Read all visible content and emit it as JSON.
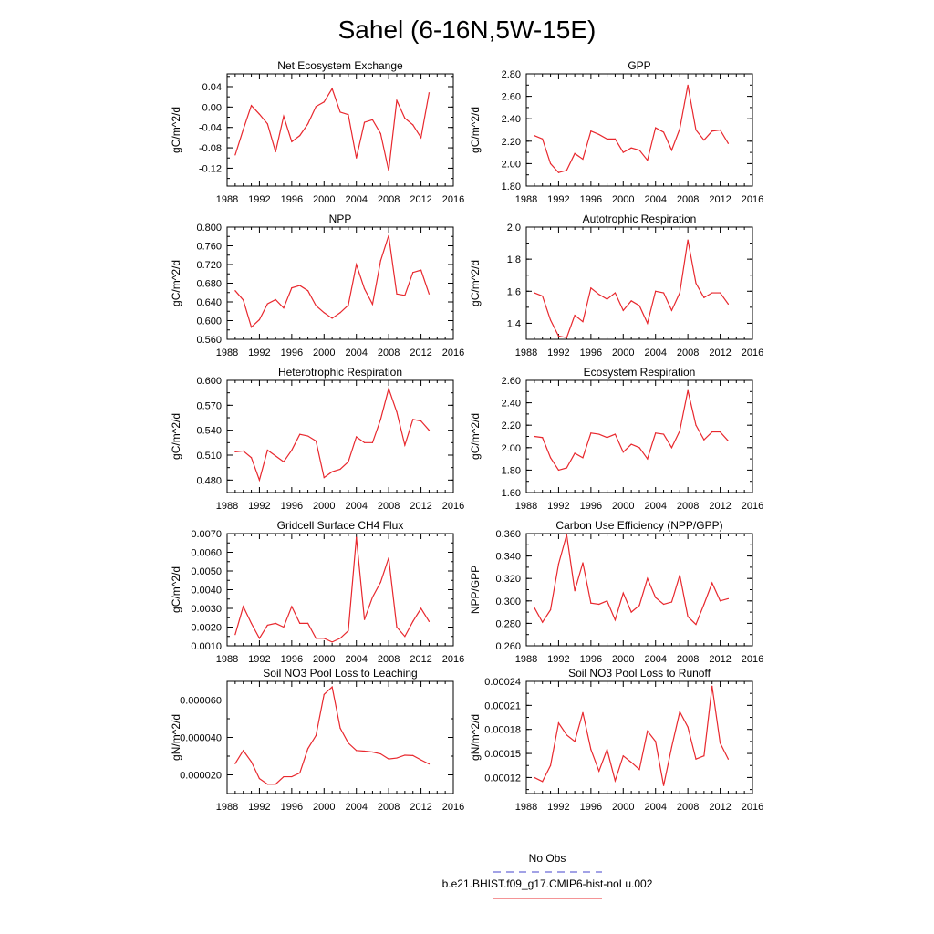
{
  "figure": {
    "title": "Sahel (6-16N,5W-15E)",
    "legend": [
      {
        "label": "No Obs",
        "color": "#4444cc",
        "style": "dashed"
      },
      {
        "label": "b.e21.BHIST.f09_g17.CMIP6-hist-noLu.002",
        "color": "#e8282e",
        "style": "solid"
      }
    ]
  },
  "chart_data": [
    {
      "type": "line",
      "title": "Net Ecosystem Exchange",
      "ylabel": "gC/m^2/d",
      "xlim": [
        1988,
        2016
      ],
      "xticks": [
        "1988",
        "1992",
        "1996",
        "2000",
        "2004",
        "2008",
        "2012",
        "2016"
      ],
      "ylim": [
        -0.155,
        0.065
      ],
      "yticks": [
        "0.04",
        "0.00",
        "-0.04",
        "-0.08",
        "-0.12"
      ],
      "x": [
        1989,
        1990,
        1991,
        1992,
        1993,
        1994,
        1995,
        1996,
        1997,
        1998,
        1999,
        2000,
        2001,
        2002,
        2003,
        2004,
        2005,
        2006,
        2007,
        2008,
        2009,
        2010,
        2011,
        2012,
        2013
      ],
      "series": [
        {
          "values": [
            -0.094,
            -0.044,
            0.003,
            -0.014,
            -0.033,
            -0.088,
            -0.018,
            -0.068,
            -0.056,
            -0.033,
            0.001,
            0.01,
            0.036,
            -0.01,
            -0.015,
            -0.1,
            -0.03,
            -0.025,
            -0.052,
            -0.125,
            0.013,
            -0.022,
            -0.035,
            -0.06,
            0.028
          ]
        }
      ]
    },
    {
      "type": "line",
      "title": "GPP",
      "ylabel": "gC/m^2/d",
      "xlim": [
        1988,
        2016
      ],
      "xticks": [
        "1988",
        "1992",
        "1996",
        "2000",
        "2004",
        "2008",
        "2012",
        "2016"
      ],
      "ylim": [
        1.8,
        2.8
      ],
      "yticks": [
        "2.80",
        "2.60",
        "2.40",
        "2.20",
        "2.00",
        "1.80"
      ],
      "x": [
        1989,
        1990,
        1991,
        1992,
        1993,
        1994,
        1995,
        1996,
        1997,
        1998,
        1999,
        2000,
        2001,
        2002,
        2003,
        2004,
        2005,
        2006,
        2007,
        2008,
        2009,
        2010,
        2011,
        2012,
        2013
      ],
      "series": [
        {
          "values": [
            2.25,
            2.22,
            2.0,
            1.92,
            1.94,
            2.09,
            2.04,
            2.29,
            2.26,
            2.22,
            2.22,
            2.1,
            2.14,
            2.12,
            2.03,
            2.32,
            2.28,
            2.12,
            2.31,
            2.7,
            2.3,
            2.21,
            2.29,
            2.3,
            2.18
          ]
        }
      ]
    },
    {
      "type": "line",
      "title": "NPP",
      "ylabel": "gC/m^2/d",
      "xlim": [
        1988,
        2016
      ],
      "xticks": [
        "1988",
        "1992",
        "1996",
        "2000",
        "2004",
        "2008",
        "2012",
        "2016"
      ],
      "ylim": [
        0.56,
        0.8
      ],
      "yticks": [
        "0.800",
        "0.760",
        "0.720",
        "0.680",
        "0.640",
        "0.600",
        "0.560"
      ],
      "x": [
        1989,
        1990,
        1991,
        1992,
        1993,
        1994,
        1995,
        1996,
        1997,
        1998,
        1999,
        2000,
        2001,
        2002,
        2003,
        2004,
        2005,
        2006,
        2007,
        2008,
        2009,
        2010,
        2011,
        2012,
        2013
      ],
      "series": [
        {
          "values": [
            0.664,
            0.644,
            0.586,
            0.602,
            0.636,
            0.645,
            0.627,
            0.67,
            0.675,
            0.664,
            0.632,
            0.617,
            0.605,
            0.617,
            0.633,
            0.72,
            0.668,
            0.635,
            0.728,
            0.782,
            0.657,
            0.654,
            0.703,
            0.708,
            0.657
          ]
        }
      ]
    },
    {
      "type": "line",
      "title": "Autotrophic Respiration",
      "ylabel": "gC/m^2/d",
      "xlim": [
        1988,
        2016
      ],
      "xticks": [
        "1988",
        "1992",
        "1996",
        "2000",
        "2004",
        "2008",
        "2012",
        "2016"
      ],
      "ylim": [
        1.3,
        2.0
      ],
      "yticks": [
        "2.0",
        "1.8",
        "1.6",
        "1.4"
      ],
      "x": [
        1989,
        1990,
        1991,
        1992,
        1993,
        1994,
        1995,
        1996,
        1997,
        1998,
        1999,
        2000,
        2001,
        2002,
        2003,
        2004,
        2005,
        2006,
        2007,
        2008,
        2009,
        2010,
        2011,
        2012,
        2013
      ],
      "series": [
        {
          "values": [
            1.59,
            1.57,
            1.42,
            1.32,
            1.31,
            1.45,
            1.41,
            1.62,
            1.58,
            1.55,
            1.59,
            1.48,
            1.54,
            1.51,
            1.4,
            1.6,
            1.59,
            1.48,
            1.59,
            1.92,
            1.65,
            1.56,
            1.59,
            1.59,
            1.52
          ]
        }
      ]
    },
    {
      "type": "line",
      "title": "Heterotrophic Respiration",
      "ylabel": "gC/m^2/d",
      "xlim": [
        1988,
        2016
      ],
      "xticks": [
        "1988",
        "1992",
        "1996",
        "2000",
        "2004",
        "2008",
        "2012",
        "2016"
      ],
      "ylim": [
        0.465,
        0.6
      ],
      "yticks": [
        "0.600",
        "0.570",
        "0.540",
        "0.510",
        "0.480"
      ],
      "x": [
        1989,
        1990,
        1991,
        1992,
        1993,
        1994,
        1995,
        1996,
        1997,
        1998,
        1999,
        2000,
        2001,
        2002,
        2003,
        2004,
        2005,
        2006,
        2007,
        2008,
        2009,
        2010,
        2011,
        2012,
        2013
      ],
      "series": [
        {
          "values": [
            0.514,
            0.515,
            0.507,
            0.48,
            0.516,
            0.509,
            0.502,
            0.516,
            0.535,
            0.533,
            0.527,
            0.483,
            0.49,
            0.493,
            0.502,
            0.532,
            0.525,
            0.525,
            0.553,
            0.59,
            0.562,
            0.522,
            0.553,
            0.551,
            0.54
          ]
        }
      ]
    },
    {
      "type": "line",
      "title": "Ecosystem Respiration",
      "ylabel": "gC/m^2/d",
      "xlim": [
        1988,
        2016
      ],
      "xticks": [
        "1988",
        "1992",
        "1996",
        "2000",
        "2004",
        "2008",
        "2012",
        "2016"
      ],
      "ylim": [
        1.6,
        2.6
      ],
      "yticks": [
        "2.60",
        "2.40",
        "2.20",
        "2.00",
        "1.80",
        "1.60"
      ],
      "x": [
        1989,
        1990,
        1991,
        1992,
        1993,
        1994,
        1995,
        1996,
        1997,
        1998,
        1999,
        2000,
        2001,
        2002,
        2003,
        2004,
        2005,
        2006,
        2007,
        2008,
        2009,
        2010,
        2011,
        2012,
        2013
      ],
      "series": [
        {
          "values": [
            2.1,
            2.09,
            1.91,
            1.8,
            1.82,
            1.95,
            1.91,
            2.13,
            2.12,
            2.09,
            2.12,
            1.96,
            2.03,
            2.0,
            1.9,
            2.13,
            2.12,
            2.0,
            2.15,
            2.51,
            2.2,
            2.07,
            2.14,
            2.14,
            2.06
          ]
        }
      ]
    },
    {
      "type": "line",
      "title": "Gridcell Surface CH4 Flux",
      "ylabel": "gC/m^2/d",
      "xlim": [
        1988,
        2016
      ],
      "xticks": [
        "1988",
        "1992",
        "1996",
        "2000",
        "2004",
        "2008",
        "2012",
        "2016"
      ],
      "ylim": [
        0.001,
        0.007
      ],
      "yticks": [
        "0.0070",
        "0.0060",
        "0.0050",
        "0.0040",
        "0.0030",
        "0.0020",
        "0.0010"
      ],
      "x": [
        1989,
        1990,
        1991,
        1992,
        1993,
        1994,
        1995,
        1996,
        1997,
        1998,
        1999,
        2000,
        2001,
        2002,
        2003,
        2004,
        2005,
        2006,
        2007,
        2008,
        2009,
        2010,
        2011,
        2012,
        2013
      ],
      "series": [
        {
          "values": [
            0.0016,
            0.0031,
            0.0022,
            0.0014,
            0.0021,
            0.0022,
            0.002,
            0.0031,
            0.0022,
            0.0022,
            0.0014,
            0.0014,
            0.0012,
            0.0014,
            0.0018,
            0.0068,
            0.0024,
            0.0036,
            0.0044,
            0.0057,
            0.002,
            0.0015,
            0.0023,
            0.003,
            0.0023
          ]
        }
      ]
    },
    {
      "type": "line",
      "title": "Carbon Use Efficiency (NPP/GPP)",
      "ylabel": "NPP/GPP",
      "xlim": [
        1988,
        2016
      ],
      "xticks": [
        "1988",
        "1992",
        "1996",
        "2000",
        "2004",
        "2008",
        "2012",
        "2016"
      ],
      "ylim": [
        0.26,
        0.36
      ],
      "yticks": [
        "0.360",
        "0.340",
        "0.320",
        "0.300",
        "0.280",
        "0.260"
      ],
      "x": [
        1989,
        1990,
        1991,
        1992,
        1993,
        1994,
        1995,
        1996,
        1997,
        1998,
        1999,
        2000,
        2001,
        2002,
        2003,
        2004,
        2005,
        2006,
        2007,
        2008,
        2009,
        2010,
        2011,
        2012,
        2013
      ],
      "series": [
        {
          "values": [
            0.294,
            0.281,
            0.292,
            0.333,
            0.359,
            0.309,
            0.334,
            0.298,
            0.297,
            0.3,
            0.283,
            0.307,
            0.29,
            0.296,
            0.32,
            0.303,
            0.297,
            0.299,
            0.323,
            0.286,
            0.279,
            0.297,
            0.316,
            0.3,
            0.302
          ]
        }
      ]
    },
    {
      "type": "line",
      "title": "Soil NO3 Pool Loss to Leaching",
      "ylabel": "gN/m^2/d",
      "xlim": [
        1988,
        2016
      ],
      "xticks": [
        "1988",
        "1992",
        "1996",
        "2000",
        "2004",
        "2008",
        "2012",
        "2016"
      ],
      "ylim": [
        1e-05,
        7e-05
      ],
      "yticks": [
        "0.000060",
        "0.000040",
        "0.000020"
      ],
      "x": [
        1989,
        1990,
        1991,
        1992,
        1993,
        1994,
        1995,
        1996,
        1997,
        1998,
        1999,
        2000,
        2001,
        2002,
        2003,
        2004,
        2005,
        2006,
        2007,
        2008,
        2009,
        2010,
        2011,
        2012,
        2013
      ],
      "series": [
        {
          "values": [
            2.6e-05,
            3.3e-05,
            2.7e-05,
            1.8e-05,
            1.5e-05,
            1.5e-05,
            1.9e-05,
            1.9e-05,
            2.1e-05,
            3.4e-05,
            4.1e-05,
            6.3e-05,
            6.7e-05,
            4.5e-05,
            3.7e-05,
            3.3e-05,
            3.27e-05,
            3.22e-05,
            3.12e-05,
            2.85e-05,
            2.9e-05,
            3.05e-05,
            3.03e-05,
            2.8e-05,
            2.58e-05
          ]
        }
      ]
    },
    {
      "type": "line",
      "title": "Soil NO3 Pool Loss to Runoff",
      "ylabel": "gN/m^2/d",
      "xlim": [
        1988,
        2016
      ],
      "xticks": [
        "1988",
        "1992",
        "1996",
        "2000",
        "2004",
        "2008",
        "2012",
        "2016"
      ],
      "ylim": [
        0.0001,
        0.00024
      ],
      "yticks": [
        "0.00024",
        "0.00021",
        "0.00018",
        "0.00015",
        "0.00012"
      ],
      "x": [
        1989,
        1990,
        1991,
        1992,
        1993,
        1994,
        1995,
        1996,
        1997,
        1998,
        1999,
        2000,
        2001,
        2002,
        2003,
        2004,
        2005,
        2006,
        2007,
        2008,
        2009,
        2010,
        2011,
        2012,
        2013
      ],
      "series": [
        {
          "values": [
            0.00012,
            0.000115,
            0.000135,
            0.000188,
            0.000173,
            0.000165,
            0.000201,
            0.000155,
            0.000128,
            0.000155,
            0.000116,
            0.000147,
            0.000139,
            0.00013,
            0.000178,
            0.000165,
            0.00011,
            0.000158,
            0.000202,
            0.000183,
            0.000143,
            0.000147,
            0.000234,
            0.000163,
            0.000143
          ]
        }
      ]
    }
  ]
}
